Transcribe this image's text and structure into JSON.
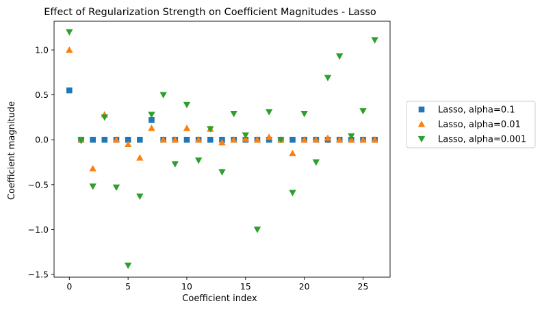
{
  "chart_data": {
    "type": "scatter",
    "title": "Effect of Regularization Strength on Coefficient Magnitudes - Lasso",
    "xlabel": "Coefficient index",
    "ylabel": "Coefficient magnitude",
    "xlim": [
      -1.3,
      27.3
    ],
    "ylim": [
      -1.53,
      1.32
    ],
    "xticks": [
      0,
      5,
      10,
      15,
      20,
      25
    ],
    "yticks": [
      -1.5,
      -1.0,
      -0.5,
      0.0,
      0.5,
      1.0
    ],
    "xtick_labels": [
      "0",
      "5",
      "10",
      "15",
      "20",
      "25"
    ],
    "ytick_labels": [
      "−1.5",
      "−1.0",
      "−0.5",
      "0.0",
      "0.5",
      "1.0"
    ],
    "grid": false,
    "legend_position": "right, outside plot",
    "x": [
      0,
      1,
      2,
      3,
      4,
      5,
      6,
      7,
      8,
      9,
      10,
      11,
      12,
      13,
      14,
      15,
      16,
      17,
      18,
      19,
      20,
      21,
      22,
      23,
      24,
      25,
      26
    ],
    "series": [
      {
        "name": "Lasso, alpha=0.1",
        "marker": "square",
        "color": "#1f77b4",
        "values": [
          0.55,
          0,
          0,
          0,
          0,
          0,
          0,
          0.22,
          0,
          0,
          0,
          0,
          0,
          0,
          0,
          0,
          0,
          0,
          0,
          0,
          0,
          0,
          0,
          0,
          0,
          0,
          0
        ]
      },
      {
        "name": "Lasso, alpha=0.01",
        "marker": "triangle-up",
        "color": "#ff7f0e",
        "values": [
          1.0,
          0,
          -0.32,
          0.28,
          0,
          -0.05,
          -0.2,
          0.13,
          0,
          0,
          0.13,
          0,
          0.12,
          -0.03,
          0,
          0.01,
          0,
          0.03,
          0,
          -0.15,
          0,
          0,
          0.02,
          0,
          0,
          0,
          0
        ]
      },
      {
        "name": "Lasso, alpha=0.001",
        "marker": "triangle-down",
        "color": "#2ca02c",
        "values": [
          1.2,
          -0.01,
          -0.52,
          0.25,
          -0.53,
          -1.4,
          -0.63,
          0.28,
          0.5,
          -0.27,
          0.39,
          -0.23,
          0.12,
          -0.36,
          0.29,
          0.05,
          -1.0,
          0.31,
          0,
          -0.59,
          0.29,
          -0.25,
          0.69,
          0.93,
          0.04,
          0.32,
          1.11
        ]
      }
    ]
  }
}
